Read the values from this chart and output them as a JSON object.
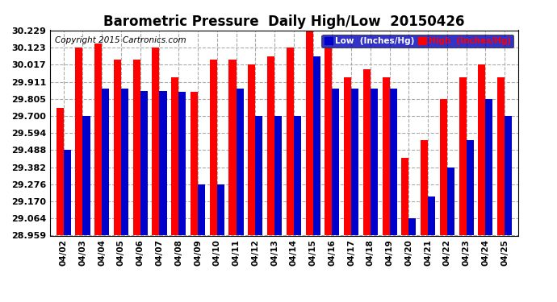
{
  "title": "Barometric Pressure  Daily High/Low  20150426",
  "copyright": "Copyright 2015 Cartronics.com",
  "legend_low": "Low  (Inches/Hg)",
  "legend_high": "High  (Inches/Hg)",
  "dates": [
    "04/02",
    "04/03",
    "04/04",
    "04/05",
    "04/06",
    "04/07",
    "04/08",
    "04/09",
    "04/10",
    "04/11",
    "04/12",
    "04/13",
    "04/14",
    "04/15",
    "04/16",
    "04/17",
    "04/18",
    "04/19",
    "04/20",
    "04/21",
    "04/22",
    "04/23",
    "04/24",
    "04/25"
  ],
  "low": [
    29.488,
    29.7,
    29.87,
    29.87,
    29.855,
    29.855,
    29.85,
    29.276,
    29.276,
    29.87,
    29.7,
    29.7,
    29.7,
    30.07,
    29.87,
    29.87,
    29.87,
    29.87,
    29.064,
    29.2,
    29.382,
    29.55,
    29.805,
    29.7
  ],
  "high": [
    29.75,
    30.123,
    30.15,
    30.05,
    30.05,
    30.123,
    29.94,
    29.85,
    30.05,
    30.05,
    30.017,
    30.07,
    30.123,
    30.229,
    30.123,
    29.94,
    29.988,
    29.94,
    29.44,
    29.55,
    29.805,
    29.94,
    30.017,
    29.94
  ],
  "ymin": 28.959,
  "ymax": 30.229,
  "yticks": [
    28.959,
    29.064,
    29.17,
    29.276,
    29.382,
    29.488,
    29.594,
    29.7,
    29.805,
    29.911,
    30.017,
    30.123,
    30.229
  ],
  "bg_color": "#ffffff",
  "low_color": "#0000cc",
  "high_color": "#ff0000",
  "bar_width": 0.38,
  "title_fontsize": 12,
  "tick_fontsize": 7.5,
  "ytick_fontsize": 8,
  "copyright_fontsize": 7.5
}
